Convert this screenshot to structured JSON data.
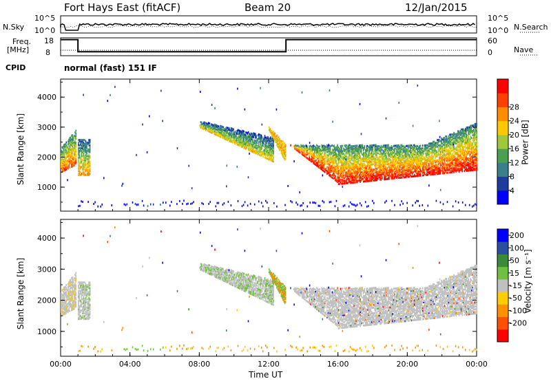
{
  "header": {
    "station": "Fort Hays East (fitACF)",
    "beam": "Beam 20",
    "date": "12/Jan/2015"
  },
  "nsky_panel": {
    "left_label": "N.Sky",
    "left_top_tick": "10^5",
    "left_bottom_tick": "10^0",
    "right_label": "N.Search",
    "right_top_tick": "10^5",
    "right_bottom_tick": "10^0"
  },
  "freq_panel": {
    "left_label_line1": "Freq.",
    "left_label_line2": "[MHz]",
    "left_top_tick": "18",
    "left_bottom_tick": "8",
    "right_label": "Nave",
    "right_top_tick": "60",
    "right_bottom_tick": "0",
    "freq_high_mhz": 17,
    "freq_low_mhz": 10.2,
    "low_interval_hours": [
      1.0,
      13.0
    ]
  },
  "cpid": {
    "label": "CPID",
    "value": "normal (fast) 151 IF"
  },
  "colors": {
    "power": [
      "#0000ff",
      "#1e3c9c",
      "#3c7f8c",
      "#4aa050",
      "#a0c83c",
      "#ffc800",
      "#ff8c00",
      "#ff4000",
      "#ff0000"
    ],
    "velocity": [
      "#ff0000",
      "#ff5000",
      "#ff9000",
      "#ffcc00",
      "#c0c0c0",
      "#70c040",
      "#3a8a3a",
      "#2a4fa0",
      "#0000ff"
    ],
    "ground_scatter": "#c0c0c0"
  },
  "chart_data": [
    {
      "type": "heatmap",
      "name": "power",
      "ylabel": "Slant Range [km]",
      "yticks": [
        "1000",
        "2000",
        "3000",
        "4000"
      ],
      "ylim": [
        200,
        4600
      ],
      "xlim_hours": [
        0,
        24
      ],
      "colorbar_label": "Power [dB]",
      "colorbar_ticks": [
        "4",
        "8",
        "12",
        "16",
        "20",
        "24",
        "28"
      ],
      "colorbar_range": [
        0,
        32
      ]
    },
    {
      "type": "heatmap",
      "name": "velocity",
      "ylabel": "Slant Range [km]",
      "yticks": [
        "1000",
        "2000",
        "3000",
        "4000"
      ],
      "ylim": [
        200,
        4600
      ],
      "xlim_hours": [
        0,
        24
      ],
      "colorbar_label": "Velocity [m s⁻¹]",
      "colorbar_ticks": [
        "200",
        "100",
        "50",
        "15",
        "-15",
        "-50",
        "-100",
        "-200"
      ],
      "xlabel": "Time UT",
      "xticks": [
        "00:00",
        "04:00",
        "08:00",
        "12:00",
        "16:00",
        "20:00",
        "00:00"
      ]
    }
  ]
}
